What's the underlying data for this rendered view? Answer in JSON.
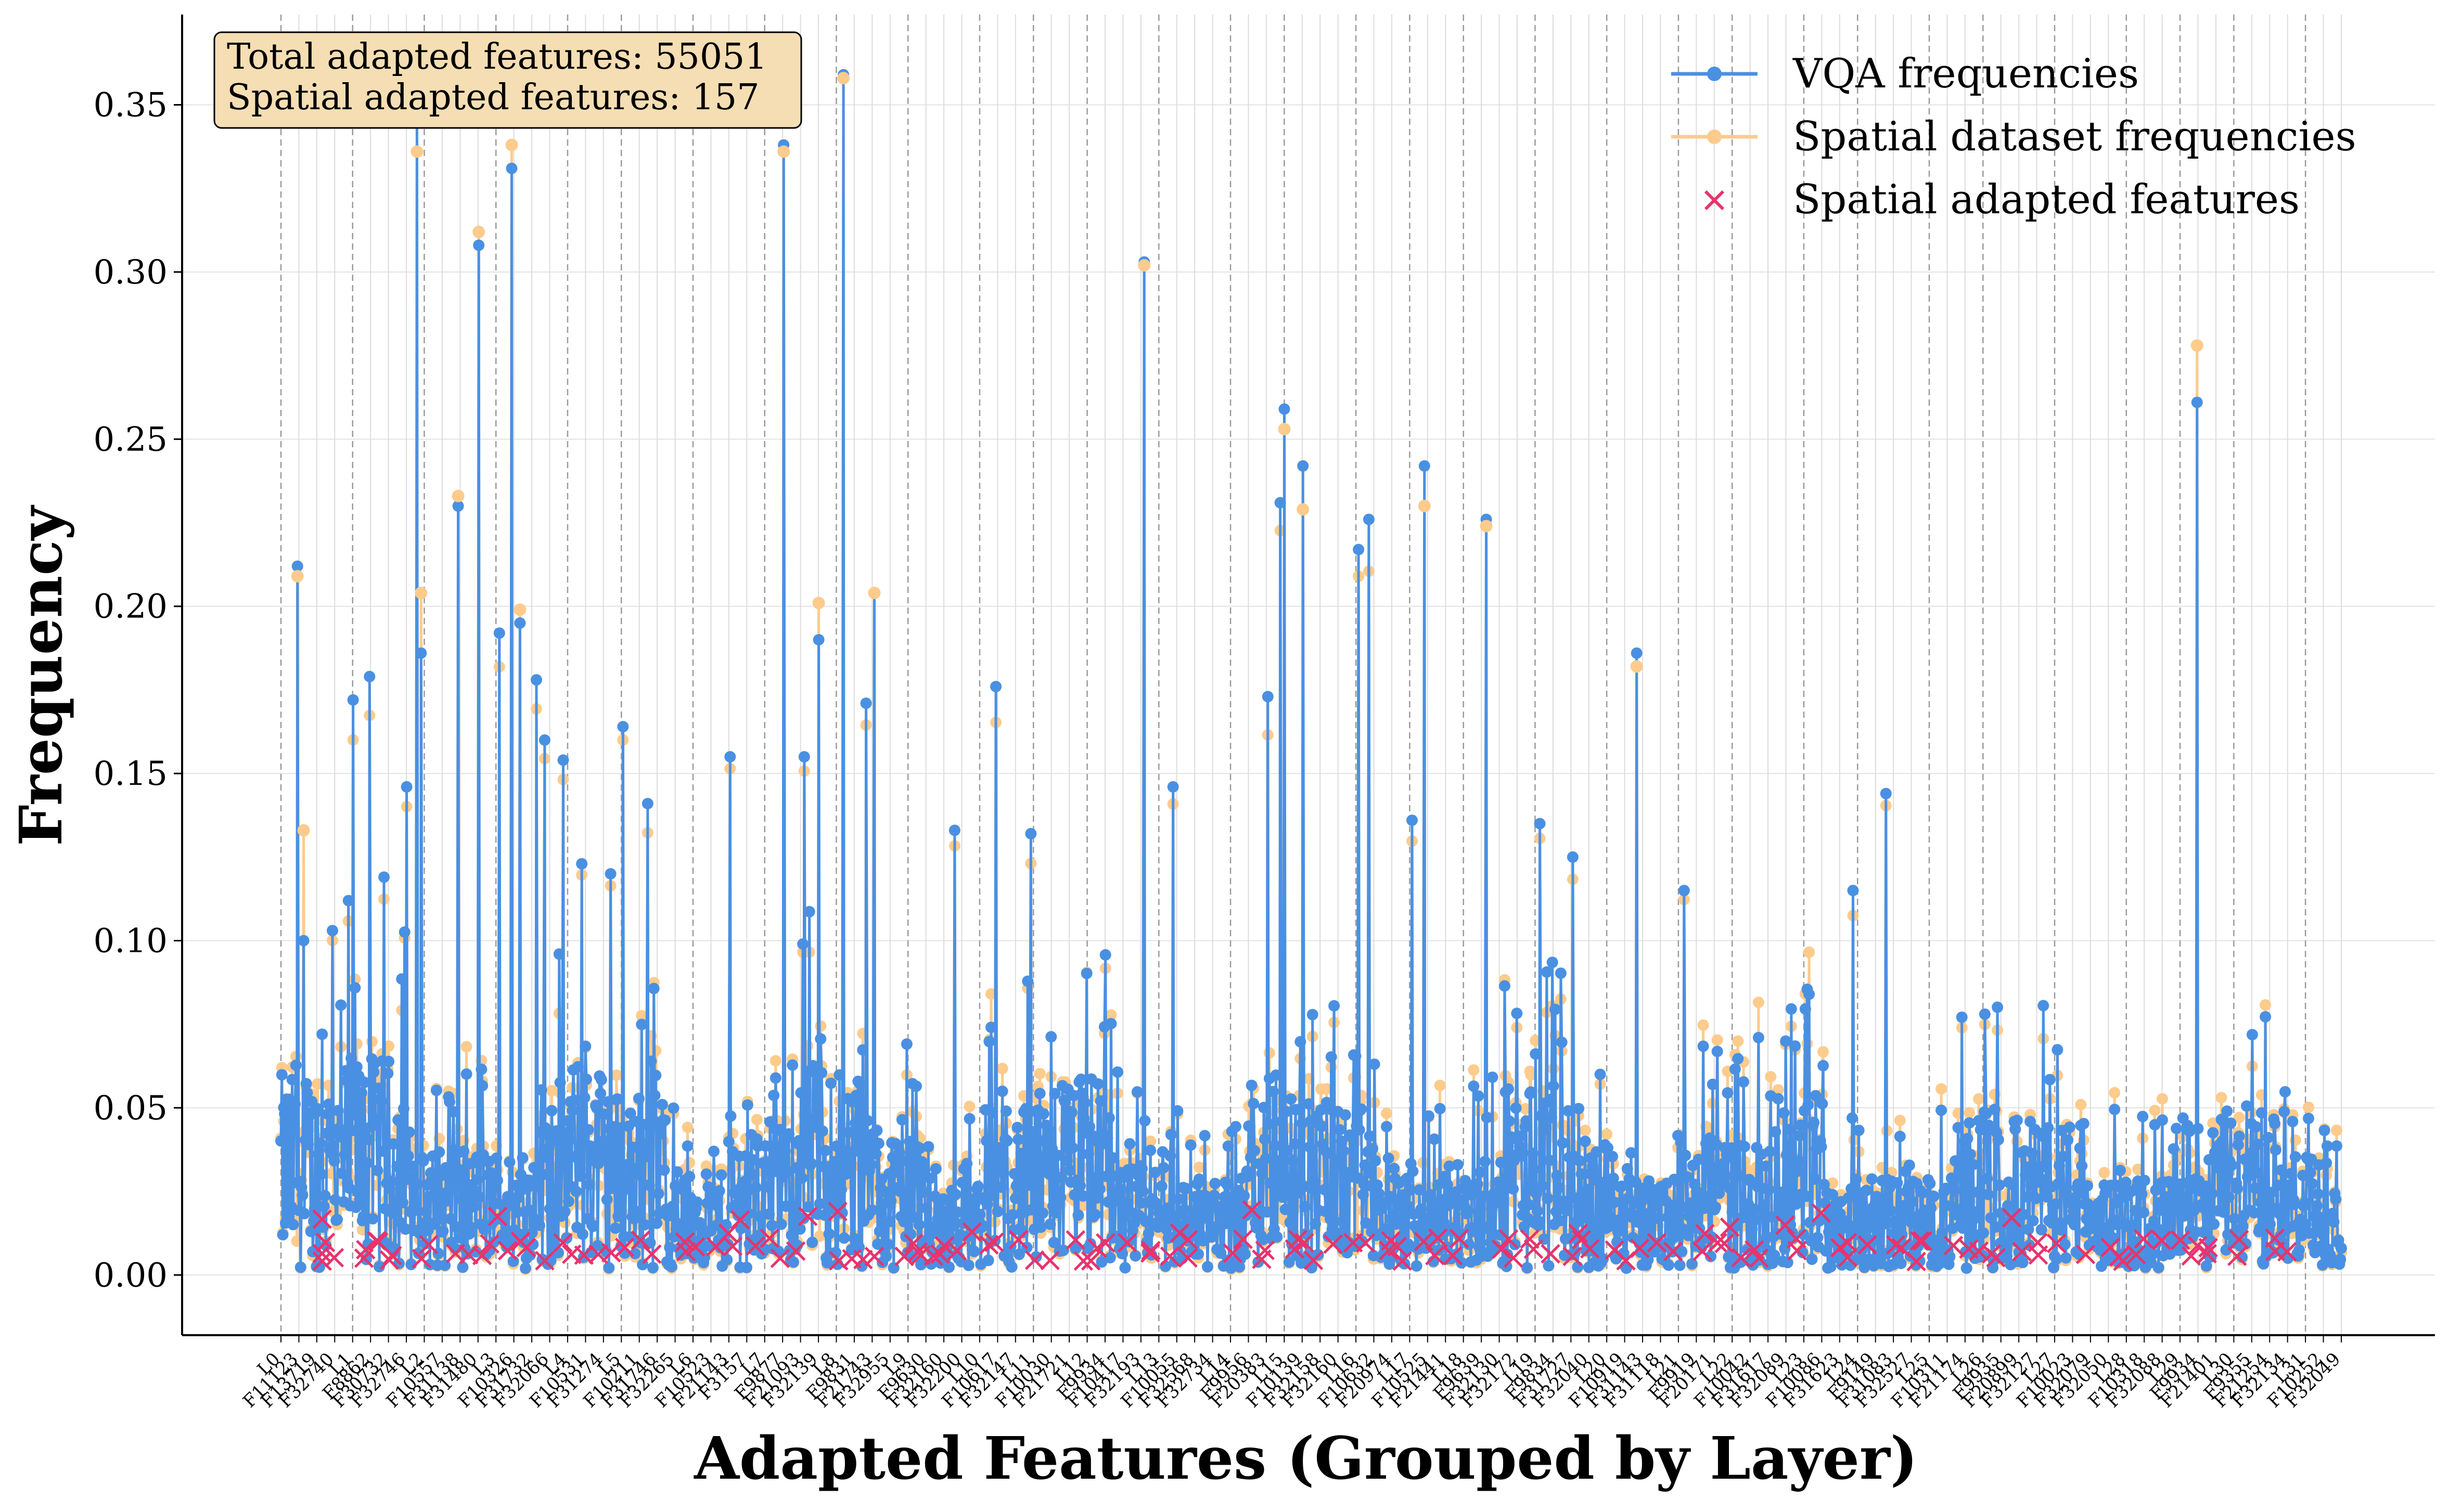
{
  "chart_data": {
    "type": "line",
    "title": "",
    "xlabel": "Adapted Features (Grouped by Layer)",
    "ylabel": "Frequency",
    "ylim": [
      -0.018,
      0.377
    ],
    "yticks": [
      0.0,
      0.05,
      0.1,
      0.15,
      0.2,
      0.25,
      0.3,
      0.35
    ],
    "ytick_labels": [
      "0.00",
      "0.05",
      "0.10",
      "0.15",
      "0.20",
      "0.25",
      "0.30",
      "0.35"
    ],
    "grid": true,
    "legend_position": "top-right",
    "legend": [
      "VQA frequencies",
      "Spatial dataset frequencies",
      "Spatial adapted features"
    ],
    "info_box": [
      "Total adapted features: 55051",
      "Spatial adapted features: 157"
    ],
    "colors": {
      "vqa": "#4a90e2",
      "spatial": "#fdcb8c",
      "adapted": "#e8336d",
      "info_box_bg": "#f5deb3"
    },
    "xtick_labels": [
      "L0",
      "F11123",
      "F13719",
      "F32740",
      "L1",
      "F8862",
      "F30732",
      "F32746",
      "L2",
      "F10557",
      "F31138",
      "F31480",
      "L3",
      "F10326",
      "F31732",
      "F32066",
      "L4",
      "F10531",
      "F31274",
      "L5",
      "F10211",
      "F31746",
      "F32265",
      "L6",
      "F10523",
      "F21143",
      "F3157",
      "L7",
      "F9877",
      "F21093",
      "F32139",
      "L8",
      "F9831",
      "F21743",
      "F32955",
      "L9",
      "F9630",
      "F32160",
      "F32200",
      "L10",
      "F10617",
      "F32147",
      "L11",
      "F10030",
      "F21721",
      "L12",
      "F9934",
      "F10417",
      "F32193",
      "L13",
      "F10055",
      "F32568",
      "F32734",
      "L14",
      "F9956",
      "F20383",
      "L15",
      "F10139",
      "F32158",
      "F32160",
      "L16",
      "F10632",
      "F20974",
      "L17",
      "F10525",
      "F21441",
      "L18",
      "F9639",
      "F32130",
      "F32172",
      "L19",
      "F9834",
      "F31727",
      "F32040",
      "L20",
      "F10919",
      "F31143",
      "F31118",
      "L21",
      "F9919",
      "F20171",
      "L22",
      "F10042",
      "F31617",
      "F32089",
      "L23",
      "F10086",
      "F31623",
      "L24",
      "F9149",
      "F31083",
      "F32527",
      "L25",
      "F10311",
      "F21174",
      "L26",
      "F9935",
      "F20899",
      "F32127",
      "L27",
      "F10023",
      "F32079",
      "F32050",
      "L28",
      "F10318",
      "F32088",
      "L29",
      "F9934",
      "F21401",
      "L30",
      "F9355",
      "F21254",
      "F32134",
      "L31",
      "F10252",
      "F32049"
    ],
    "series": [
      {
        "name": "VQA frequencies",
        "peaks": [
          {
            "x": 0.008,
            "y": 0.212
          },
          {
            "x": 0.011,
            "y": 0.1
          },
          {
            "x": 0.025,
            "y": 0.103
          },
          {
            "x": 0.035,
            "y": 0.172
          },
          {
            "x": 0.043,
            "y": 0.179
          },
          {
            "x": 0.05,
            "y": 0.119
          },
          {
            "x": 0.061,
            "y": 0.146
          },
          {
            "x": 0.066,
            "y": 0.345
          },
          {
            "x": 0.068,
            "y": 0.186
          },
          {
            "x": 0.086,
            "y": 0.23
          },
          {
            "x": 0.096,
            "y": 0.308
          },
          {
            "x": 0.106,
            "y": 0.192
          },
          {
            "x": 0.112,
            "y": 0.331
          },
          {
            "x": 0.116,
            "y": 0.195
          },
          {
            "x": 0.124,
            "y": 0.178
          },
          {
            "x": 0.128,
            "y": 0.16
          },
          {
            "x": 0.137,
            "y": 0.154
          },
          {
            "x": 0.146,
            "y": 0.123
          },
          {
            "x": 0.16,
            "y": 0.12
          },
          {
            "x": 0.166,
            "y": 0.164
          },
          {
            "x": 0.178,
            "y": 0.141
          },
          {
            "x": 0.218,
            "y": 0.155
          },
          {
            "x": 0.244,
            "y": 0.338
          },
          {
            "x": 0.254,
            "y": 0.155
          },
          {
            "x": 0.261,
            "y": 0.19
          },
          {
            "x": 0.273,
            "y": 0.359
          },
          {
            "x": 0.284,
            "y": 0.171
          },
          {
            "x": 0.288,
            "y": 0.204
          },
          {
            "x": 0.327,
            "y": 0.133
          },
          {
            "x": 0.347,
            "y": 0.176
          },
          {
            "x": 0.364,
            "y": 0.132
          },
          {
            "x": 0.419,
            "y": 0.303
          },
          {
            "x": 0.433,
            "y": 0.146
          },
          {
            "x": 0.479,
            "y": 0.173
          },
          {
            "x": 0.485,
            "y": 0.231
          },
          {
            "x": 0.487,
            "y": 0.259
          },
          {
            "x": 0.496,
            "y": 0.242
          },
          {
            "x": 0.523,
            "y": 0.217
          },
          {
            "x": 0.528,
            "y": 0.226
          },
          {
            "x": 0.549,
            "y": 0.136
          },
          {
            "x": 0.555,
            "y": 0.242
          },
          {
            "x": 0.585,
            "y": 0.226
          },
          {
            "x": 0.611,
            "y": 0.135
          },
          {
            "x": 0.627,
            "y": 0.125
          },
          {
            "x": 0.658,
            "y": 0.186
          },
          {
            "x": 0.681,
            "y": 0.115
          },
          {
            "x": 0.779,
            "y": 0.144
          },
          {
            "x": 0.763,
            "y": 0.115
          },
          {
            "x": 0.827,
            "y": 0.078
          },
          {
            "x": 0.93,
            "y": 0.261
          }
        ]
      },
      {
        "name": "Spatial dataset frequencies",
        "peaks": [
          {
            "x": 0.008,
            "y": 0.209
          },
          {
            "x": 0.011,
            "y": 0.133
          },
          {
            "x": 0.066,
            "y": 0.336
          },
          {
            "x": 0.068,
            "y": 0.204
          },
          {
            "x": 0.086,
            "y": 0.233
          },
          {
            "x": 0.096,
            "y": 0.312
          },
          {
            "x": 0.112,
            "y": 0.338
          },
          {
            "x": 0.116,
            "y": 0.199
          },
          {
            "x": 0.244,
            "y": 0.336
          },
          {
            "x": 0.261,
            "y": 0.201
          },
          {
            "x": 0.273,
            "y": 0.358
          },
          {
            "x": 0.288,
            "y": 0.204
          },
          {
            "x": 0.419,
            "y": 0.302
          },
          {
            "x": 0.487,
            "y": 0.253
          },
          {
            "x": 0.496,
            "y": 0.229
          },
          {
            "x": 0.555,
            "y": 0.23
          },
          {
            "x": 0.585,
            "y": 0.224
          },
          {
            "x": 0.658,
            "y": 0.182
          },
          {
            "x": 0.93,
            "y": 0.278
          }
        ]
      },
      {
        "name": "Spatial adapted features",
        "marker": "x",
        "y_range": [
          0.004,
          0.02
        ]
      }
    ]
  }
}
